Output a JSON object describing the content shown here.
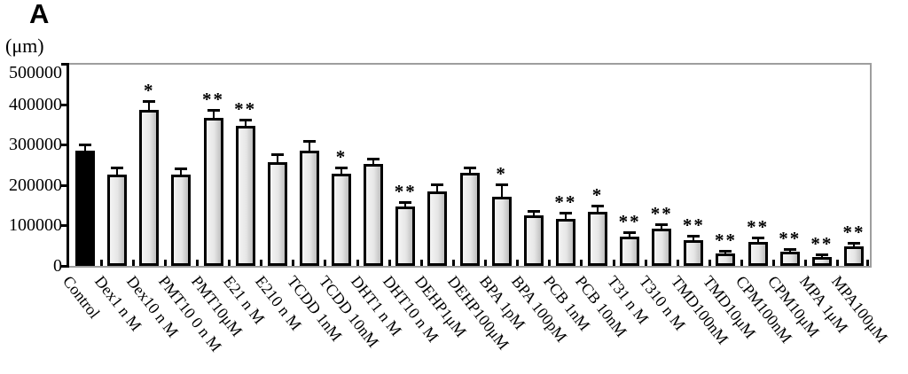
{
  "panel_label": "A",
  "colors": {
    "frame": "#9e9e9e",
    "axis": "#000000",
    "control_fill": "#000000",
    "bar_fill_light": "#f2f2f2",
    "bar_fill_mid": "#e6e6e6",
    "bar_fill_edge": "#bfbfbf",
    "bar_border": "#000000"
  },
  "chart_data": {
    "type": "bar",
    "title": "",
    "xlabel": "",
    "ylabel": "(μm)",
    "ylim": [
      0,
      500000
    ],
    "grid": false,
    "legend": false,
    "y_ticks": [
      {
        "value": 0,
        "label": "0"
      },
      {
        "value": 100000,
        "label": "100000"
      },
      {
        "value": 200000,
        "label": "200000"
      },
      {
        "value": 300000,
        "label": "300000"
      },
      {
        "value": 400000,
        "label": "400000"
      },
      {
        "value": 500000,
        "label": "500000"
      }
    ],
    "bars": [
      {
        "label": "Control",
        "value": 285000,
        "error": 13000,
        "sig": "",
        "black": true
      },
      {
        "label": "Dex1 n M",
        "value": 226000,
        "error": 15000,
        "sig": ""
      },
      {
        "label": "Dex10 n M",
        "value": 385000,
        "error": 20000,
        "sig": "*"
      },
      {
        "label": "PMT10 0 n M",
        "value": 226000,
        "error": 12000,
        "sig": ""
      },
      {
        "label": "PMT10μM",
        "value": 366000,
        "error": 18000,
        "sig": "**"
      },
      {
        "label": "E21 n M",
        "value": 347000,
        "error": 13000,
        "sig": "**"
      },
      {
        "label": "E210 n M",
        "value": 257000,
        "error": 18000,
        "sig": ""
      },
      {
        "label": "TCDD 1nM",
        "value": 285000,
        "error": 22000,
        "sig": ""
      },
      {
        "label": "TCDD 10nM",
        "value": 228000,
        "error": 13000,
        "sig": "*"
      },
      {
        "label": "DHT1 n M",
        "value": 252000,
        "error": 12000,
        "sig": ""
      },
      {
        "label": "DHT10 n M",
        "value": 147000,
        "error": 8000,
        "sig": "**"
      },
      {
        "label": "DEHP1μM",
        "value": 184000,
        "error": 15000,
        "sig": ""
      },
      {
        "label": "DEHP100μM",
        "value": 230000,
        "error": 12000,
        "sig": ""
      },
      {
        "label": "BPA 1pM",
        "value": 171000,
        "error": 28000,
        "sig": "*"
      },
      {
        "label": "BPA 100pM",
        "value": 124000,
        "error": 10000,
        "sig": ""
      },
      {
        "label": "PCB 1nM",
        "value": 116000,
        "error": 14000,
        "sig": "**"
      },
      {
        "label": "PCB 10nM",
        "value": 134000,
        "error": 13000,
        "sig": "*"
      },
      {
        "label": "T31 n M",
        "value": 72000,
        "error": 9000,
        "sig": "**"
      },
      {
        "label": "T310 n M",
        "value": 92000,
        "error": 8000,
        "sig": "**"
      },
      {
        "label": "TMD100nM",
        "value": 64000,
        "error": 9000,
        "sig": "**"
      },
      {
        "label": "TMD10μM",
        "value": 30000,
        "error": 6000,
        "sig": "**"
      },
      {
        "label": "CPM100nM",
        "value": 60000,
        "error": 7000,
        "sig": "**"
      },
      {
        "label": "CPM10μM",
        "value": 35000,
        "error": 5000,
        "sig": "**"
      },
      {
        "label": "MPA 1μM",
        "value": 22000,
        "error": 4000,
        "sig": "**"
      },
      {
        "label": "MPA100μM",
        "value": 48000,
        "error": 6000,
        "sig": "**"
      }
    ]
  }
}
